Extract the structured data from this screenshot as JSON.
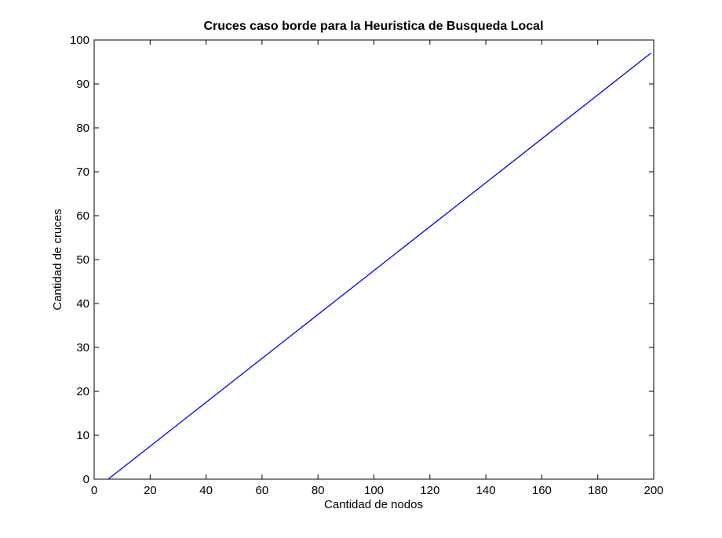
{
  "chart_data": {
    "type": "line",
    "title": "Cruces caso borde para la Heuristica de Busqueda Local",
    "xlabel": "Cantidad de nodos",
    "ylabel": "Cantidad de cruces",
    "xlim": [
      0,
      200
    ],
    "ylim": [
      0,
      100
    ],
    "xticks": [
      0,
      20,
      40,
      60,
      80,
      100,
      120,
      140,
      160,
      180,
      200
    ],
    "yticks": [
      0,
      10,
      20,
      30,
      40,
      50,
      60,
      70,
      80,
      90,
      100
    ],
    "grid": false,
    "legend": "none",
    "series": [
      {
        "color": "#0000ff",
        "x": [
          5,
          199
        ],
        "y": [
          0,
          97
        ]
      }
    ]
  }
}
